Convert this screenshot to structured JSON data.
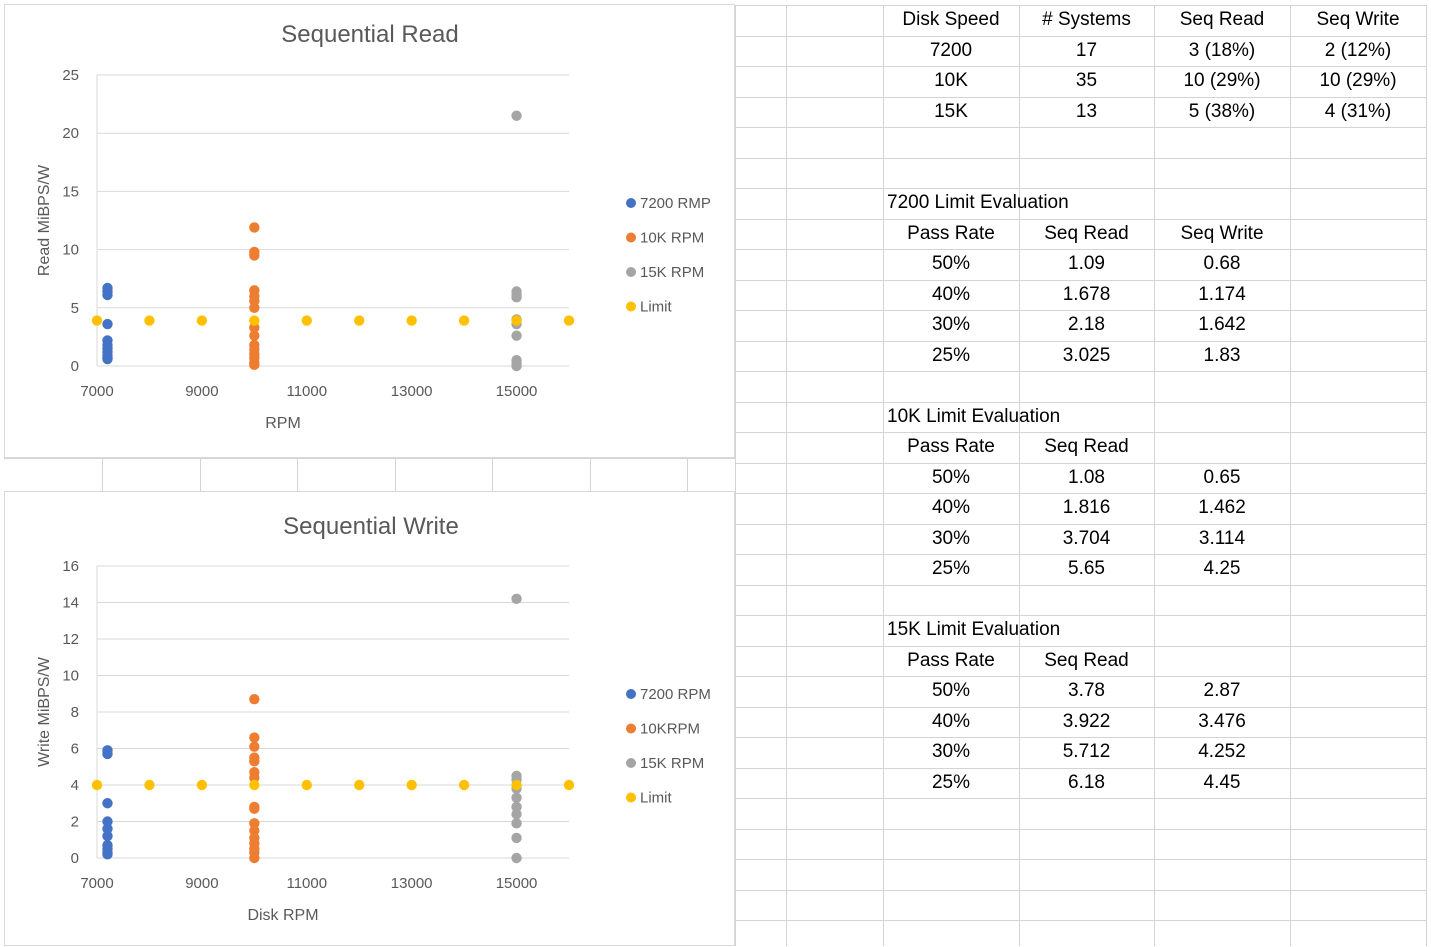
{
  "chart_data": [
    {
      "type": "scatter",
      "title": "Sequential Read",
      "xlabel": "RPM",
      "ylabel": "Read MiBPS/W",
      "xlim": [
        7000,
        16000
      ],
      "ylim": [
        0,
        25
      ],
      "xticks": [
        7000,
        9000,
        11000,
        13000,
        15000
      ],
      "yticks": [
        0,
        5,
        10,
        15,
        20,
        25
      ],
      "grid": true,
      "legend": "right",
      "series": [
        {
          "name": "7200 RMP",
          "color": "#4472C4",
          "points": [
            [
              7200,
              6.7
            ],
            [
              7200,
              6.4
            ],
            [
              7200,
              6.1
            ],
            [
              7200,
              3.6
            ],
            [
              7200,
              2.2
            ],
            [
              7200,
              1.8
            ],
            [
              7200,
              1.5
            ],
            [
              7200,
              1.2
            ],
            [
              7200,
              0.9
            ],
            [
              7200,
              0.7
            ],
            [
              7200,
              0.6
            ]
          ]
        },
        {
          "name": "10K RPM",
          "color": "#ED7D31",
          "points": [
            [
              10000,
              11.9
            ],
            [
              10000,
              9.8
            ],
            [
              10000,
              9.5
            ],
            [
              10000,
              6.5
            ],
            [
              10000,
              6.0
            ],
            [
              10000,
              5.6
            ],
            [
              10000,
              5.0
            ],
            [
              10000,
              3.3
            ],
            [
              10000,
              2.6
            ],
            [
              10000,
              1.8
            ],
            [
              10000,
              1.4
            ],
            [
              10000,
              1.0
            ],
            [
              10000,
              0.7
            ],
            [
              10000,
              0.3
            ],
            [
              10000,
              0.1
            ]
          ]
        },
        {
          "name": "15K RPM",
          "color": "#A5A5A5",
          "points": [
            [
              15000,
              21.5
            ],
            [
              15000,
              6.4
            ],
            [
              15000,
              6.1
            ],
            [
              15000,
              5.9
            ],
            [
              15000,
              4.0
            ],
            [
              15000,
              3.6
            ],
            [
              15000,
              2.6
            ],
            [
              15000,
              0.5
            ],
            [
              15000,
              0.2
            ],
            [
              15000,
              0.0
            ]
          ]
        },
        {
          "name": "Limit",
          "color": "#FFC000",
          "points": [
            [
              7000,
              3.9
            ],
            [
              8000,
              3.9
            ],
            [
              9000,
              3.9
            ],
            [
              10000,
              3.9
            ],
            [
              11000,
              3.9
            ],
            [
              12000,
              3.9
            ],
            [
              13000,
              3.9
            ],
            [
              14000,
              3.9
            ],
            [
              15000,
              3.9
            ],
            [
              16000,
              3.9
            ]
          ]
        }
      ]
    },
    {
      "type": "scatter",
      "title": "Sequential Write",
      "xlabel": "Disk RPM",
      "ylabel": "Write MiBPS/W",
      "xlim": [
        7000,
        16000
      ],
      "ylim": [
        0,
        16
      ],
      "xticks": [
        7000,
        9000,
        11000,
        13000,
        15000
      ],
      "yticks": [
        0,
        2,
        4,
        6,
        8,
        10,
        12,
        14,
        16
      ],
      "grid": true,
      "legend": "right",
      "series": [
        {
          "name": "7200 RPM",
          "color": "#4472C4",
          "points": [
            [
              7200,
              5.9
            ],
            [
              7200,
              5.7
            ],
            [
              7200,
              3.0
            ],
            [
              7200,
              2.0
            ],
            [
              7200,
              1.6
            ],
            [
              7200,
              1.2
            ],
            [
              7200,
              0.7
            ],
            [
              7200,
              0.5
            ],
            [
              7200,
              0.3
            ],
            [
              7200,
              0.2
            ]
          ]
        },
        {
          "name": "10KRPM",
          "color": "#ED7D31",
          "points": [
            [
              10000,
              8.7
            ],
            [
              10000,
              6.6
            ],
            [
              10000,
              6.1
            ],
            [
              10000,
              5.5
            ],
            [
              10000,
              5.3
            ],
            [
              10000,
              4.7
            ],
            [
              10000,
              4.4
            ],
            [
              10000,
              2.8
            ],
            [
              10000,
              2.7
            ],
            [
              10000,
              1.9
            ],
            [
              10000,
              1.5
            ],
            [
              10000,
              1.1
            ],
            [
              10000,
              0.8
            ],
            [
              10000,
              0.5
            ],
            [
              10000,
              0.3
            ],
            [
              10000,
              0.0
            ]
          ]
        },
        {
          "name": "15K RPM",
          "color": "#A5A5A5",
          "points": [
            [
              15000,
              14.2
            ],
            [
              15000,
              4.5
            ],
            [
              15000,
              4.3
            ],
            [
              15000,
              3.8
            ],
            [
              15000,
              3.3
            ],
            [
              15000,
              2.8
            ],
            [
              15000,
              2.4
            ],
            [
              15000,
              1.9
            ],
            [
              15000,
              1.1
            ],
            [
              15000,
              0.0
            ]
          ]
        },
        {
          "name": "Limit",
          "color": "#FFC000",
          "points": [
            [
              7000,
              4.0
            ],
            [
              8000,
              4.0
            ],
            [
              9000,
              4.0
            ],
            [
              10000,
              4.0
            ],
            [
              11000,
              4.0
            ],
            [
              12000,
              4.0
            ],
            [
              13000,
              4.0
            ],
            [
              14000,
              4.0
            ],
            [
              15000,
              4.0
            ],
            [
              16000,
              4.0
            ]
          ]
        }
      ]
    }
  ],
  "summary_table": {
    "headers": [
      "Disk Speed",
      "# Systems",
      "Seq Read",
      "Seq Write"
    ],
    "rows": [
      [
        "7200",
        "17",
        "3 (18%)",
        "2 (12%)"
      ],
      [
        "10K",
        "35",
        "10 (29%)",
        "10 (29%)"
      ],
      [
        "15K",
        "13",
        "5 (38%)",
        "4 (31%)"
      ]
    ]
  },
  "limit_tables": [
    {
      "title": "7200 Limit Evaluation",
      "headers": [
        "Pass Rate",
        "Seq Read",
        "Seq Write"
      ],
      "rows": [
        [
          "50%",
          "1.09",
          "0.68"
        ],
        [
          "40%",
          "1.678",
          "1.174"
        ],
        [
          "30%",
          "2.18",
          "1.642"
        ],
        [
          "25%",
          "3.025",
          "1.83"
        ]
      ]
    },
    {
      "title": "10K Limit Evaluation",
      "headers": [
        "Pass Rate",
        "Seq Read",
        ""
      ],
      "rows": [
        [
          "50%",
          "1.08",
          "0.65"
        ],
        [
          "40%",
          "1.816",
          "1.462"
        ],
        [
          "30%",
          "3.704",
          "3.114"
        ],
        [
          "25%",
          "5.65",
          "4.25"
        ]
      ]
    },
    {
      "title": "15K Limit Evaluation",
      "headers": [
        "Pass Rate",
        "Seq Read",
        ""
      ],
      "rows": [
        [
          "50%",
          "3.78",
          "2.87"
        ],
        [
          "40%",
          "3.922",
          "3.476"
        ],
        [
          "30%",
          "5.712",
          "4.252"
        ],
        [
          "25%",
          "6.18",
          "4.45"
        ]
      ]
    }
  ]
}
